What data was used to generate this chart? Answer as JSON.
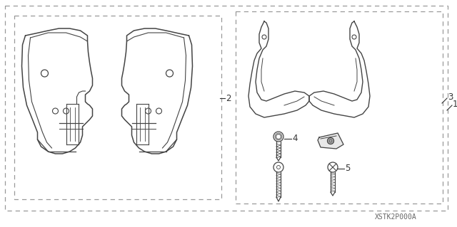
{
  "bg_color": "#ffffff",
  "line_color": "#444444",
  "dash_color": "#999999",
  "text_color": "#333333",
  "fig_width": 6.4,
  "fig_height": 3.19,
  "dpi": 100,
  "watermark": "XSTK2P000A"
}
